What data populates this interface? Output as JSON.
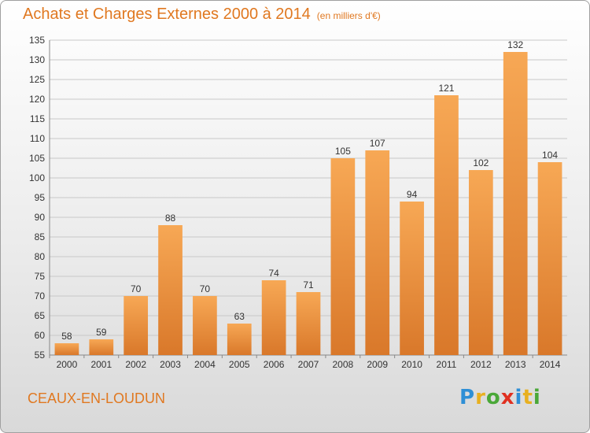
{
  "header": {
    "title": "Achats et Charges Externes 2000 à 2014",
    "subtitle": "(en milliers d'€)"
  },
  "footer": {
    "commune": "CEAUX-EN-LOUDUN",
    "brand_letters": [
      "P",
      "r",
      "o",
      "x",
      "i",
      "t",
      "i"
    ],
    "brand_colors": [
      "#2e8fd6",
      "#e8b020",
      "#4aa838",
      "#e03020",
      "#2e8fd6",
      "#e8b020",
      "#4aa838"
    ]
  },
  "colors": {
    "accent": "#e07820",
    "bar_light": "#f7a855",
    "bar_dark": "#d9782a",
    "grid": "#c8c8c8"
  },
  "chart_data": {
    "type": "bar",
    "title": "Achats et Charges Externes 2000 à 2014",
    "subtitle": "(en milliers d'€)",
    "categories": [
      "2000",
      "2001",
      "2002",
      "2003",
      "2004",
      "2005",
      "2006",
      "2007",
      "2008",
      "2009",
      "2010",
      "2011",
      "2012",
      "2013",
      "2014"
    ],
    "values": [
      58,
      59,
      70,
      88,
      70,
      63,
      74,
      71,
      105,
      107,
      94,
      121,
      102,
      132,
      104
    ],
    "ylim": [
      55,
      135
    ],
    "yticks": [
      55,
      60,
      65,
      70,
      75,
      80,
      85,
      90,
      95,
      100,
      105,
      110,
      115,
      120,
      125,
      130,
      135
    ],
    "grid": true,
    "xlabel": "",
    "ylabel": ""
  }
}
